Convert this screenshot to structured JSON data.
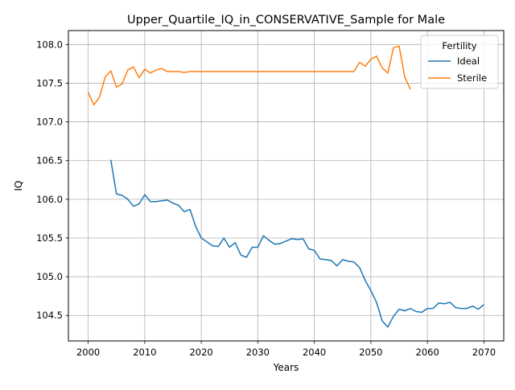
{
  "chart_data": {
    "type": "line",
    "title": "Upper_Quartile_IQ_in_CONSERVATIVE_Sample for Male",
    "xlabel": "Years",
    "ylabel": "IQ",
    "xlim": [
      1996.5,
      2073.5
    ],
    "ylim": [
      104.17,
      108.18
    ],
    "x_ticks": [
      2000,
      2010,
      2020,
      2030,
      2040,
      2050,
      2060,
      2070
    ],
    "y_ticks": [
      104.5,
      105.0,
      105.5,
      106.0,
      106.5,
      107.0,
      107.5,
      108.0
    ],
    "x_tick_labels": [
      "2000",
      "2010",
      "2020",
      "2030",
      "2040",
      "2050",
      "2060",
      "2070"
    ],
    "y_tick_labels": [
      "104.5",
      "105.0",
      "105.5",
      "106.0",
      "106.5",
      "107.0",
      "107.5",
      "108.0"
    ],
    "grid": true,
    "legend": {
      "title": "Fertility",
      "position": "top-right"
    },
    "series": [
      {
        "name": "Ideal",
        "color": "#1f77b4",
        "x": [
          2004,
          2005,
          2006,
          2007,
          2008,
          2009,
          2010,
          2011,
          2012,
          2013,
          2014,
          2015,
          2016,
          2017,
          2018,
          2019,
          2020,
          2021,
          2022,
          2023,
          2024,
          2025,
          2026,
          2027,
          2028,
          2029,
          2030,
          2031,
          2032,
          2033,
          2034,
          2035,
          2036,
          2037,
          2038,
          2039,
          2040,
          2041,
          2042,
          2043,
          2044,
          2045,
          2046,
          2047,
          2048,
          2049,
          2050,
          2051,
          2052,
          2053,
          2054,
          2055,
          2056,
          2057,
          2058,
          2059,
          2060,
          2061,
          2062,
          2063,
          2064,
          2065,
          2066,
          2067,
          2068,
          2069,
          2070
        ],
        "y": [
          106.51,
          106.07,
          106.05,
          106.0,
          105.91,
          105.94,
          106.06,
          105.97,
          105.97,
          105.98,
          105.99,
          105.95,
          105.92,
          105.84,
          105.87,
          105.65,
          105.5,
          105.45,
          105.4,
          105.39,
          105.5,
          105.38,
          105.44,
          105.28,
          105.25,
          105.38,
          105.38,
          105.53,
          105.47,
          105.42,
          105.43,
          105.46,
          105.49,
          105.48,
          105.49,
          105.36,
          105.34,
          105.23,
          105.22,
          105.21,
          105.14,
          105.22,
          105.2,
          105.19,
          105.12,
          104.95,
          104.82,
          104.67,
          104.43,
          104.35,
          104.49,
          104.58,
          104.56,
          104.59,
          104.55,
          104.54,
          104.59,
          104.59,
          104.66,
          104.65,
          104.67,
          104.6,
          104.59,
          104.59,
          104.62,
          104.58,
          104.64
        ]
      },
      {
        "name": "Sterile",
        "color": "#ff7f0e",
        "x": [
          2000,
          2001,
          2002,
          2003,
          2004,
          2005,
          2006,
          2007,
          2008,
          2009,
          2010,
          2011,
          2012,
          2013,
          2014,
          2015,
          2016,
          2017,
          2018,
          2019,
          2020,
          2021,
          2022,
          2023,
          2024,
          2025,
          2026,
          2027,
          2028,
          2029,
          2030,
          2031,
          2032,
          2033,
          2034,
          2035,
          2036,
          2037,
          2038,
          2039,
          2040,
          2041,
          2042,
          2043,
          2044,
          2045,
          2046,
          2047,
          2048,
          2049,
          2050,
          2051,
          2052,
          2053,
          2054,
          2055,
          2056,
          2057
        ],
        "y": [
          107.38,
          107.22,
          107.32,
          107.58,
          107.66,
          107.45,
          107.49,
          107.67,
          107.71,
          107.57,
          107.68,
          107.63,
          107.67,
          107.69,
          107.65,
          107.65,
          107.65,
          107.64,
          107.65,
          107.65,
          107.65,
          107.65,
          107.65,
          107.65,
          107.65,
          107.65,
          107.65,
          107.65,
          107.65,
          107.65,
          107.65,
          107.65,
          107.65,
          107.65,
          107.65,
          107.65,
          107.65,
          107.65,
          107.65,
          107.65,
          107.65,
          107.65,
          107.65,
          107.65,
          107.65,
          107.65,
          107.65,
          107.65,
          107.77,
          107.72,
          107.81,
          107.85,
          107.7,
          107.63,
          107.96,
          107.98,
          107.58,
          107.42
        ]
      }
    ]
  }
}
